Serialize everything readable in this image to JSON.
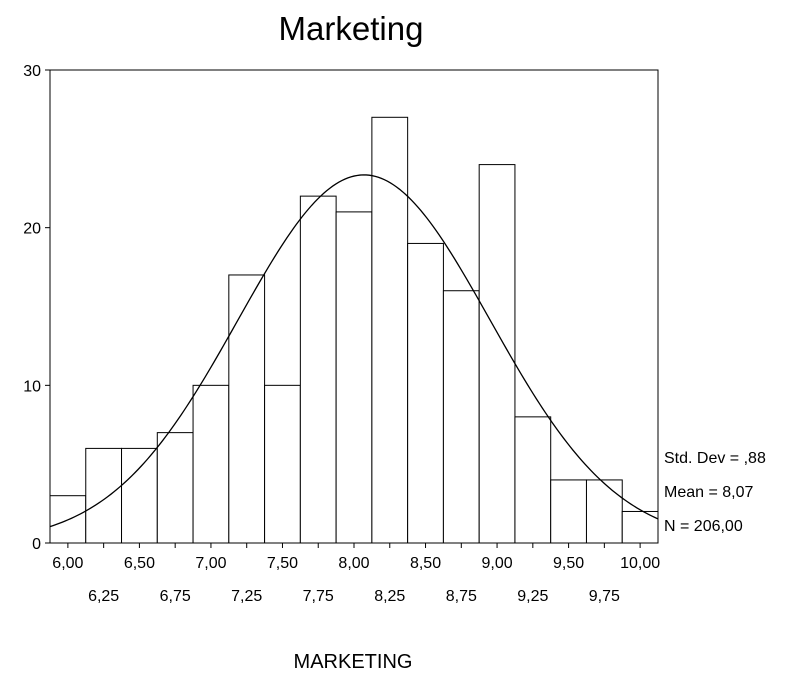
{
  "chart_data": {
    "type": "bar",
    "title": "Marketing",
    "xlabel": "MARKETING",
    "ylabel": "",
    "ylim": [
      0,
      30
    ],
    "yticks": [
      "0",
      "10",
      "20",
      "30"
    ],
    "xlim": [
      5.875,
      10.125
    ],
    "bin_width": 0.25,
    "bin_centers": [
      6.0,
      6.25,
      6.5,
      6.75,
      7.0,
      7.25,
      7.5,
      7.75,
      8.0,
      8.25,
      8.5,
      8.75,
      9.0,
      9.25,
      9.5,
      9.75,
      10.0
    ],
    "values": [
      3,
      6,
      6,
      7,
      10,
      17,
      10,
      22,
      21,
      27,
      19,
      16,
      24,
      8,
      4,
      4,
      2
    ],
    "xticks_row1": [
      "6,00",
      "6,50",
      "7,00",
      "7,50",
      "8,00",
      "8,50",
      "9,00",
      "9,50",
      "10,00"
    ],
    "xticks_row2": [
      "6,25",
      "6,75",
      "7,25",
      "7,75",
      "8,25",
      "8,75",
      "9,25",
      "9,75"
    ],
    "normal_curve": {
      "mean": 8.07,
      "std_dev": 0.88,
      "n": 206
    },
    "stats": {
      "std_dev": "Std. Dev = ,88",
      "mean": "Mean = 8,07",
      "n": "N = 206,00"
    },
    "grid": false,
    "legend": "none"
  }
}
